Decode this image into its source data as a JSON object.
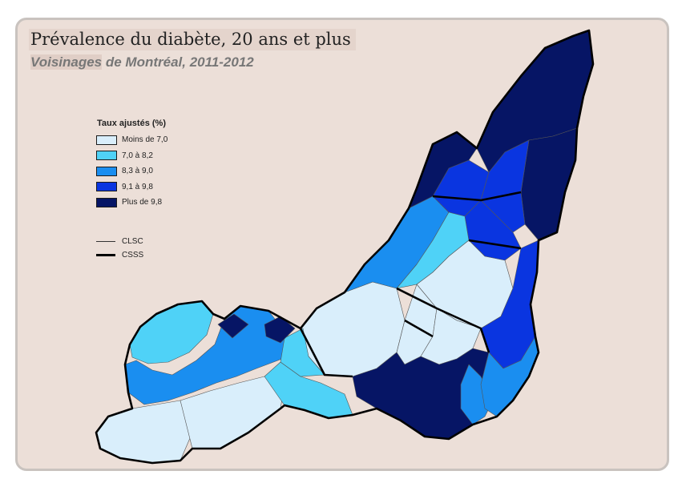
{
  "title": "Prévalence du diabète, 20 ans et plus",
  "subtitle": {
    "highlight": "Voisinages",
    "rest": " de Montréal, 2011-2012"
  },
  "legend": {
    "title": "Taux ajustés (%)",
    "classes": [
      {
        "label": "Moins de 7,0",
        "color": "#d9eefb"
      },
      {
        "label": "7,0 à 8,2",
        "color": "#4fd2f7"
      },
      {
        "label": "8,3 à 9,0",
        "color": "#1a8ef0"
      },
      {
        "label": "9,1 à 9,8",
        "color": "#0a35e0"
      },
      {
        "label": "Plus de 9,8",
        "color": "#061565"
      }
    ],
    "boundaries": [
      {
        "label": "CLSC",
        "weight": "thin"
      },
      {
        "label": "CSSS",
        "weight": "thick"
      }
    ]
  },
  "map": {
    "regions": [
      {
        "name": "pierrefonds-senneville",
        "class": 2
      },
      {
        "name": "ile-bizard",
        "class": 1
      },
      {
        "name": "ouest-island-south",
        "class": 0
      },
      {
        "name": "pointe-claire",
        "class": 0
      },
      {
        "name": "dorval-lachine",
        "class": 1
      },
      {
        "name": "saint-laurent",
        "class": 0
      },
      {
        "name": "ahuntsic-ouest",
        "class": 2
      },
      {
        "name": "ahuntsic-nord",
        "class": 3
      },
      {
        "name": "montreal-nord",
        "class": 4
      },
      {
        "name": "riviere-des-prairies",
        "class": 4
      },
      {
        "name": "pointe-aux-trembles",
        "class": 4
      },
      {
        "name": "anjou",
        "class": 3
      },
      {
        "name": "saint-leonard",
        "class": 3
      },
      {
        "name": "villeray",
        "class": 1
      },
      {
        "name": "plateau",
        "class": 0
      },
      {
        "name": "cote-des-neiges",
        "class": 0
      },
      {
        "name": "centre-ville",
        "class": 0
      },
      {
        "name": "hochelaga",
        "class": 3
      },
      {
        "name": "verdun-lasalle",
        "class": 4
      },
      {
        "name": "sud-ouest",
        "class": 2
      },
      {
        "name": "mercier-est",
        "class": 2
      },
      {
        "name": "west-core",
        "class": 1
      },
      {
        "name": "dollard-pocket",
        "class": 4
      }
    ]
  }
}
